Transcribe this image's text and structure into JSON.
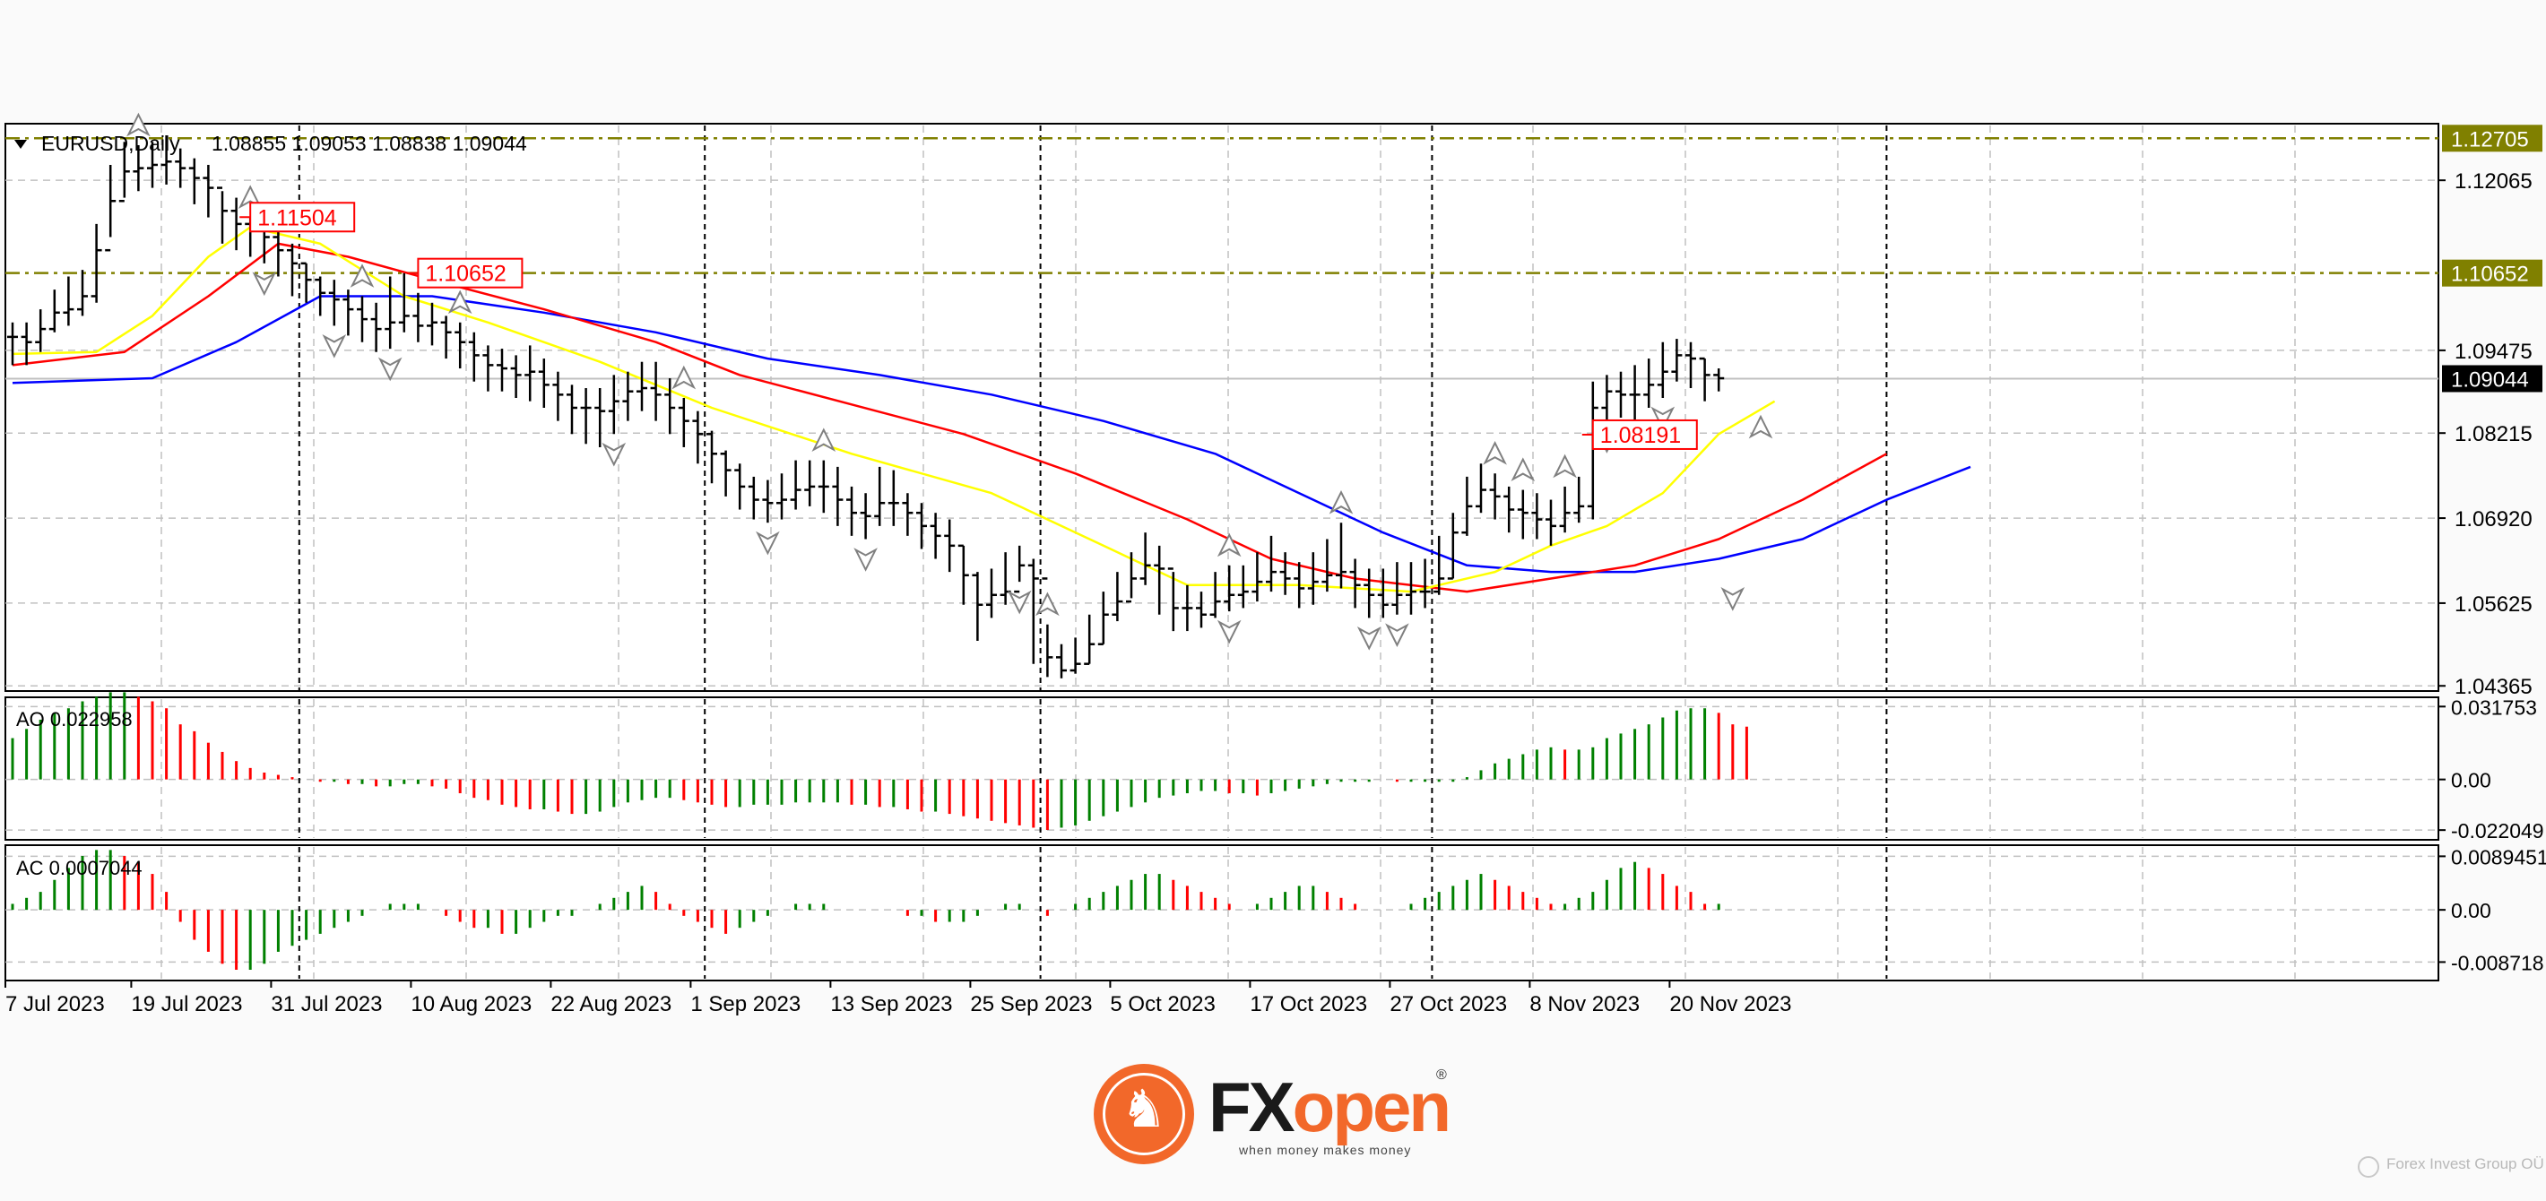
{
  "chart": {
    "symbol_label": "EURUSD,Daily",
    "ohlc_label": "1.08855 1.09053 1.08838 1.09044",
    "current_price_label": "1.09044",
    "current_price": 1.09044,
    "price_ticks": [
      "1.12065",
      "1.09475",
      "1.08215",
      "1.06920",
      "1.05625",
      "1.04365"
    ],
    "price_tick_values": [
      1.12065,
      1.09475,
      1.08215,
      1.0692,
      1.05625,
      1.04365
    ],
    "price_range": [
      1.043,
      1.129
    ],
    "horizontal_levels": [
      {
        "label": "1.12705",
        "value": 1.12705,
        "color": "#808000"
      },
      {
        "label": "1.10652",
        "value": 1.10652,
        "color": "#808000"
      }
    ],
    "callouts": [
      {
        "label": "1.11504",
        "value": 1.11504,
        "day": 17,
        "color": "#ff0000"
      },
      {
        "label": "1.10652",
        "value": 1.10652,
        "day": 29,
        "color": "#ff0000"
      },
      {
        "label": "1.08191",
        "value": 1.08191,
        "day": 113,
        "color": "#ff0000"
      }
    ],
    "date_labels": [
      {
        "label": "7 Jul 2023",
        "day": 0
      },
      {
        "label": "19 Jul 2023",
        "day": 9
      },
      {
        "label": "31 Jul 2023",
        "day": 19
      },
      {
        "label": "10 Aug 2023",
        "day": 29
      },
      {
        "label": "22 Aug 2023",
        "day": 39
      },
      {
        "label": "1 Sep 2023",
        "day": 49
      },
      {
        "label": "13 Sep 2023",
        "day": 59
      },
      {
        "label": "25 Sep 2023",
        "day": 69
      },
      {
        "label": "5 Oct 2023",
        "day": 79
      },
      {
        "label": "17 Oct 2023",
        "day": 89
      },
      {
        "label": "27 Oct 2023",
        "day": 99
      },
      {
        "label": "8 Nov 2023",
        "day": 109
      },
      {
        "label": "20 Nov 2023",
        "day": 119
      }
    ],
    "period_separator_days": [
      20.5,
      49.5,
      73.5,
      101.5,
      134
    ],
    "bars_close": [
      1.0968,
      1.096,
      1.098,
      1.1005,
      1.101,
      1.103,
      1.11,
      1.1175,
      1.122,
      1.1225,
      1.123,
      1.1235,
      1.1225,
      1.121,
      1.1195,
      1.116,
      1.114,
      1.113,
      1.112,
      1.11,
      1.108,
      1.1055,
      1.1035,
      1.1025,
      1.101,
      1.0995,
      1.098,
      1.099,
      1.1,
      1.0985,
      1.099,
      1.0975,
      1.096,
      1.094,
      1.0925,
      1.092,
      1.091,
      1.0915,
      1.0895,
      1.088,
      1.086,
      1.086,
      1.0855,
      1.087,
      1.0885,
      1.089,
      1.088,
      1.086,
      1.084,
      1.082,
      1.079,
      1.0765,
      1.074,
      1.072,
      1.0715,
      1.072,
      1.0735,
      1.074,
      1.074,
      1.072,
      1.07,
      1.0695,
      1.0715,
      1.0715,
      1.07,
      1.068,
      1.0665,
      1.065,
      1.0605,
      1.056,
      1.0575,
      1.058,
      1.062,
      1.06,
      1.048,
      1.046,
      1.047,
      1.05,
      1.0545,
      1.0565,
      1.06,
      1.062,
      1.0615,
      1.0555,
      1.0555,
      1.0545,
      1.0565,
      1.0575,
      1.058,
      1.0595,
      1.061,
      1.06,
      1.0585,
      1.0595,
      1.0605,
      1.061,
      1.059,
      1.0575,
      1.056,
      1.0575,
      1.058,
      1.058,
      1.06,
      1.067,
      1.071,
      1.0735,
      1.0725,
      1.0705,
      1.07,
      1.069,
      1.068,
      1.07,
      1.071,
      1.086,
      1.0885,
      1.088,
      1.088,
      1.0895,
      1.0915,
      1.094,
      1.0935,
      1.091,
      1.0905
    ],
    "bars_high": [
      1.099,
      1.099,
      1.101,
      1.104,
      1.106,
      1.107,
      1.114,
      1.123,
      1.1265,
      1.126,
      1.1265,
      1.1275,
      1.1255,
      1.124,
      1.123,
      1.119,
      1.118,
      1.115,
      1.115,
      1.113,
      1.111,
      1.108,
      1.106,
      1.1055,
      1.104,
      1.103,
      1.102,
      1.106,
      1.1065,
      1.1035,
      1.102,
      1.1,
      1.099,
      1.0975,
      1.0955,
      1.095,
      1.094,
      1.0955,
      1.0935,
      1.0915,
      1.0895,
      1.089,
      1.089,
      1.091,
      1.0915,
      1.093,
      1.093,
      1.0905,
      1.0875,
      1.0855,
      1.0825,
      1.0795,
      1.0775,
      1.0755,
      1.075,
      1.076,
      1.078,
      1.078,
      1.078,
      1.077,
      1.074,
      1.073,
      1.077,
      1.0765,
      1.073,
      1.0715,
      1.07,
      1.069,
      1.065,
      1.061,
      1.0615,
      1.064,
      1.065,
      1.063,
      1.053,
      1.05,
      1.051,
      1.0545,
      1.058,
      1.061,
      1.064,
      1.067,
      1.065,
      1.061,
      1.059,
      1.058,
      1.061,
      1.062,
      1.062,
      1.064,
      1.0665,
      1.064,
      1.0625,
      1.064,
      1.066,
      1.0685,
      1.063,
      1.0615,
      1.0615,
      1.0625,
      1.0625,
      1.063,
      1.0665,
      1.07,
      1.0755,
      1.0775,
      1.076,
      1.074,
      1.0735,
      1.073,
      1.072,
      1.074,
      1.0755,
      1.09,
      1.091,
      1.0915,
      1.0925,
      1.0935,
      1.096,
      1.0965,
      1.096,
      1.0935,
      1.092
    ],
    "bars_low": [
      1.0925,
      1.0925,
      1.0945,
      1.0975,
      1.0985,
      1.1,
      1.102,
      1.112,
      1.118,
      1.119,
      1.1195,
      1.12,
      1.1195,
      1.117,
      1.115,
      1.111,
      1.11,
      1.109,
      1.108,
      1.106,
      1.103,
      1.102,
      1.1,
      1.0985,
      1.097,
      1.096,
      1.0945,
      1.095,
      1.0975,
      1.096,
      1.0955,
      1.0935,
      1.092,
      1.09,
      1.0885,
      1.0885,
      1.0875,
      1.087,
      1.086,
      1.084,
      1.082,
      1.0805,
      1.08,
      1.082,
      1.084,
      1.0855,
      1.084,
      1.082,
      1.08,
      1.0775,
      1.0745,
      1.0725,
      1.0705,
      1.069,
      1.0685,
      1.069,
      1.0705,
      1.071,
      1.07,
      1.068,
      1.0665,
      1.066,
      1.068,
      1.068,
      1.0665,
      1.0645,
      1.063,
      1.061,
      1.056,
      1.0505,
      1.054,
      1.056,
      1.0595,
      1.047,
      1.045,
      1.0448,
      1.0455,
      1.047,
      1.05,
      1.0535,
      1.057,
      1.059,
      1.0545,
      1.052,
      1.052,
      1.0525,
      1.054,
      1.055,
      1.0555,
      1.0565,
      1.058,
      1.0575,
      1.0555,
      1.056,
      1.058,
      1.0585,
      1.0555,
      1.054,
      1.054,
      1.0545,
      1.0545,
      1.0555,
      1.0575,
      1.06,
      1.0665,
      1.07,
      1.069,
      1.067,
      1.066,
      1.066,
      1.065,
      1.067,
      1.0685,
      1.069,
      1.084,
      1.0845,
      1.083,
      1.086,
      1.0875,
      1.09,
      1.089,
      1.087,
      1.0885
    ],
    "ma_yellow": [
      [
        0,
        1.0942
      ],
      [
        6,
        1.0945
      ],
      [
        10,
        1.1
      ],
      [
        14,
        1.109
      ],
      [
        17,
        1.1135
      ],
      [
        22,
        1.111
      ],
      [
        28,
        1.103
      ],
      [
        34,
        1.099
      ],
      [
        42,
        1.093
      ],
      [
        50,
        1.086
      ],
      [
        60,
        1.079
      ],
      [
        70,
        1.073
      ],
      [
        78,
        1.065
      ],
      [
        84,
        1.059
      ],
      [
        92,
        1.059
      ],
      [
        100,
        1.058
      ],
      [
        106,
        1.061
      ],
      [
        110,
        1.065
      ],
      [
        114,
        1.068
      ],
      [
        118,
        1.073
      ],
      [
        122,
        1.082
      ],
      [
        126,
        1.087
      ]
    ],
    "ma_red": [
      [
        0,
        1.0925
      ],
      [
        8,
        1.0945
      ],
      [
        14,
        1.103
      ],
      [
        19,
        1.111
      ],
      [
        24,
        1.109
      ],
      [
        30,
        1.1055
      ],
      [
        38,
        1.101
      ],
      [
        46,
        1.096
      ],
      [
        52,
        1.091
      ],
      [
        60,
        1.0865
      ],
      [
        68,
        1.082
      ],
      [
        76,
        1.076
      ],
      [
        84,
        1.069
      ],
      [
        90,
        1.063
      ],
      [
        96,
        1.06
      ],
      [
        104,
        1.058
      ],
      [
        110,
        1.06
      ],
      [
        116,
        1.062
      ],
      [
        122,
        1.066
      ],
      [
        128,
        1.072
      ],
      [
        134,
        1.079
      ]
    ],
    "ma_blue": [
      [
        0,
        1.0898
      ],
      [
        10,
        1.0905
      ],
      [
        16,
        1.096
      ],
      [
        22,
        1.103
      ],
      [
        30,
        1.103
      ],
      [
        38,
        1.1005
      ],
      [
        46,
        1.0975
      ],
      [
        54,
        1.0935
      ],
      [
        62,
        1.091
      ],
      [
        70,
        1.088
      ],
      [
        78,
        1.084
      ],
      [
        86,
        1.079
      ],
      [
        92,
        1.073
      ],
      [
        98,
        1.067
      ],
      [
        104,
        1.062
      ],
      [
        110,
        1.061
      ],
      [
        116,
        1.061
      ],
      [
        122,
        1.063
      ],
      [
        128,
        1.066
      ],
      [
        134,
        1.072
      ],
      [
        140,
        1.077
      ]
    ],
    "fractals_up": [
      9,
      17,
      25,
      32,
      48,
      58,
      74,
      87,
      95,
      106,
      108,
      111,
      125
    ],
    "fractals_down": [
      18,
      23,
      27,
      43,
      54,
      61,
      72,
      87,
      97,
      99,
      114,
      118,
      123
    ],
    "ao": {
      "label": "AO 0.022958",
      "ticks": [
        "0.031753",
        "0.00",
        "-0.022049"
      ],
      "tick_values": [
        0.031753,
        0.0,
        -0.022049
      ],
      "range": [
        -0.0255,
        0.035
      ],
      "values": [
        0.018,
        0.022,
        0.026,
        0.029,
        0.031,
        0.034,
        0.036,
        0.038,
        0.038,
        0.036,
        0.034,
        0.031,
        0.024,
        0.021,
        0.016,
        0.012,
        0.008,
        0.005,
        0.003,
        0.002,
        0.001,
        0.0,
        -0.001,
        -0.001,
        -0.002,
        -0.002,
        -0.003,
        -0.003,
        -0.002,
        -0.002,
        -0.003,
        -0.004,
        -0.006,
        -0.008,
        -0.009,
        -0.011,
        -0.012,
        -0.013,
        -0.013,
        -0.014,
        -0.015,
        -0.015,
        -0.014,
        -0.012,
        -0.01,
        -0.009,
        -0.008,
        -0.008,
        -0.009,
        -0.01,
        -0.011,
        -0.012,
        -0.012,
        -0.011,
        -0.011,
        -0.011,
        -0.01,
        -0.01,
        -0.01,
        -0.01,
        -0.011,
        -0.011,
        -0.012,
        -0.012,
        -0.013,
        -0.014,
        -0.014,
        -0.015,
        -0.016,
        -0.017,
        -0.018,
        -0.019,
        -0.02,
        -0.021,
        -0.022,
        -0.021,
        -0.02,
        -0.018,
        -0.016,
        -0.014,
        -0.012,
        -0.01,
        -0.008,
        -0.007,
        -0.006,
        -0.005,
        -0.005,
        -0.006,
        -0.006,
        -0.007,
        -0.006,
        -0.005,
        -0.004,
        -0.003,
        -0.002,
        -0.001,
        -0.001,
        -0.001,
        0.0,
        -0.001,
        -0.001,
        -0.001,
        -0.001,
        -0.001,
        0.001,
        0.004,
        0.007,
        0.009,
        0.011,
        0.013,
        0.014,
        0.013,
        0.013,
        0.014,
        0.018,
        0.02,
        0.022,
        0.024,
        0.027,
        0.03,
        0.031,
        0.031,
        0.029,
        0.024,
        0.023
      ]
    },
    "ac": {
      "label": "AC 0.0007044",
      "ticks": [
        "0.0089451",
        "0.00",
        "-0.008718"
      ],
      "tick_values": [
        0.0089451,
        0.0,
        -0.008718
      ],
      "range": [
        -0.0115,
        0.0105
      ],
      "values": [
        0.001,
        0.002,
        0.003,
        0.005,
        0.007,
        0.009,
        0.01,
        0.01,
        0.009,
        0.008,
        0.006,
        0.003,
        -0.002,
        -0.005,
        -0.007,
        -0.009,
        -0.01,
        -0.01,
        -0.009,
        -0.007,
        -0.006,
        -0.005,
        -0.004,
        -0.003,
        -0.002,
        -0.001,
        0.0,
        0.001,
        0.001,
        0.001,
        0.0,
        -0.001,
        -0.002,
        -0.003,
        -0.003,
        -0.004,
        -0.004,
        -0.003,
        -0.002,
        -0.001,
        -0.001,
        0.0,
        0.001,
        0.002,
        0.003,
        0.004,
        0.003,
        0.001,
        -0.001,
        -0.002,
        -0.003,
        -0.004,
        -0.003,
        -0.002,
        -0.001,
        0.0,
        0.001,
        0.001,
        0.001,
        0.0,
        0.0,
        0.0,
        0.0,
        0.0,
        -0.001,
        -0.001,
        -0.002,
        -0.002,
        -0.002,
        -0.001,
        0.0,
        0.001,
        0.001,
        0.0,
        -0.001,
        0.0,
        0.001,
        0.002,
        0.003,
        0.004,
        0.005,
        0.006,
        0.006,
        0.005,
        0.004,
        0.003,
        0.002,
        0.001,
        0.0,
        0.001,
        0.002,
        0.003,
        0.004,
        0.004,
        0.003,
        0.002,
        0.001,
        0.0,
        0.0,
        0.0,
        0.001,
        0.002,
        0.003,
        0.004,
        0.005,
        0.006,
        0.005,
        0.004,
        0.003,
        0.002,
        0.001,
        0.001,
        0.002,
        0.003,
        0.005,
        0.007,
        0.008,
        0.007,
        0.006,
        0.004,
        0.003,
        0.001,
        0.001
      ]
    },
    "colors": {
      "background": "#ffffff",
      "grid": "#c0c0c0",
      "candle": "#000000",
      "ma_yellow": "#ffff00",
      "ma_red": "#ff0000",
      "ma_blue": "#0000ff",
      "level": "#808000",
      "callout": "#ff0000",
      "ao_up": "#008000",
      "ao_down": "#ff0000",
      "price_line": "#c0c0c0",
      "current_price_bg": "#000000",
      "fractal": "#808080",
      "separator": "#000000"
    }
  },
  "footer": {
    "logo_fx": "FX",
    "logo_open": "open",
    "logo_reg": "®",
    "logo_tagline": "when money makes money",
    "credit": "Forex Invest Group OÜ"
  }
}
